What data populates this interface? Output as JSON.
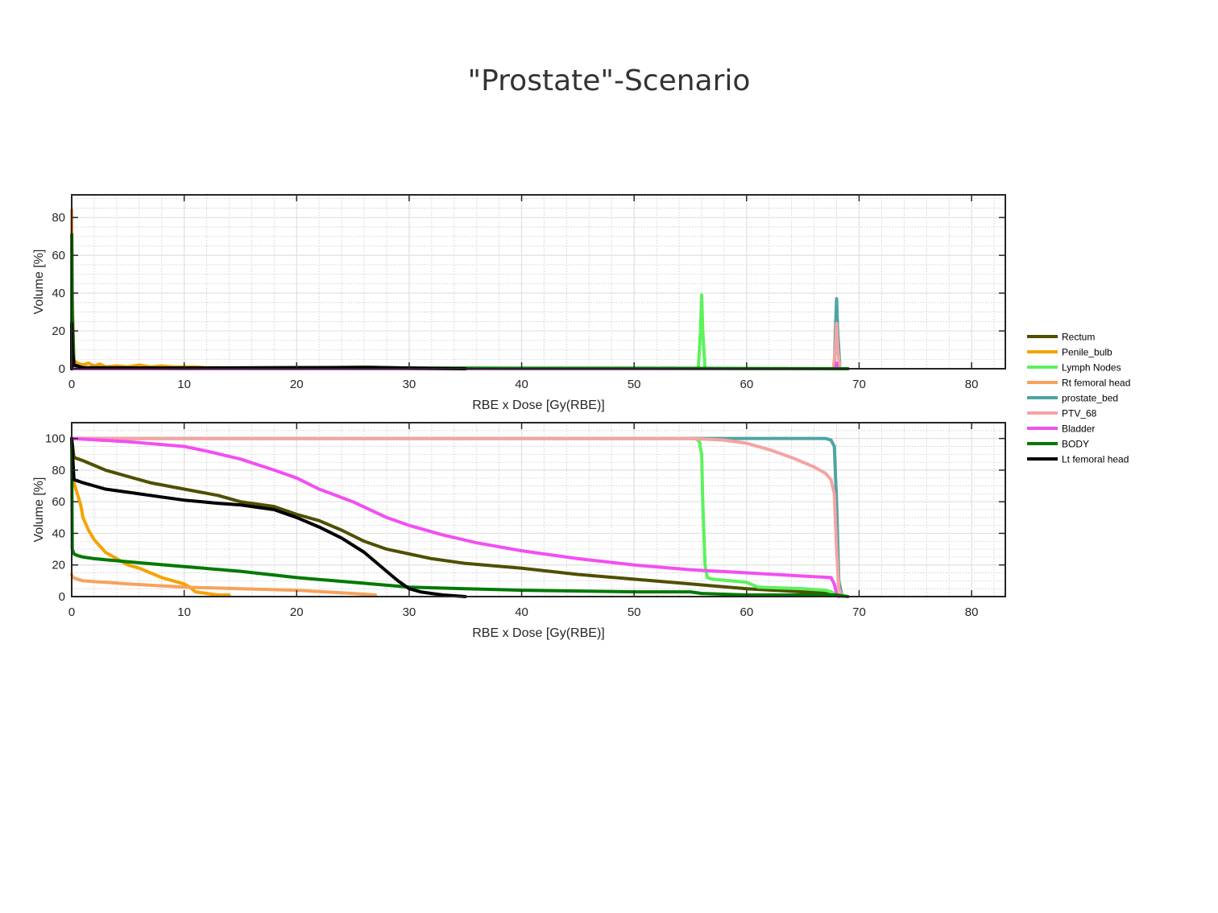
{
  "slide": {
    "title": "\"Prostate\"-Scenario"
  },
  "legend": {
    "entries": [
      {
        "name": "Rectum",
        "color": "#4f4f00"
      },
      {
        "name": "Penile_bulb",
        "color": "#f5a300"
      },
      {
        "name": "Lymph Nodes",
        "color": "#5cf25c"
      },
      {
        "name": "Rt femoral head",
        "color": "#f5a35c"
      },
      {
        "name": "prostate_bed",
        "color": "#4fa3a3"
      },
      {
        "name": "PTV_68",
        "color": "#f5a3a3"
      },
      {
        "name": "Bladder",
        "color": "#f24ff2"
      },
      {
        "name": "BODY",
        "color": "#007a00"
      },
      {
        "name": "Lt femoral head",
        "color": "#000000"
      }
    ]
  },
  "chart_data": [
    {
      "type": "line",
      "panel": "dose-volume-histogram-differential",
      "xlabel": "RBE x Dose [Gy(RBE)]",
      "ylabel": "Volume [%]",
      "xlim": [
        0,
        83
      ],
      "ylim": [
        0,
        92
      ],
      "xticks": [
        0,
        10,
        20,
        30,
        40,
        50,
        60,
        70,
        80
      ],
      "yticks": [
        0,
        20,
        40,
        60,
        80
      ],
      "grid": "on (major and minor)",
      "series": [
        {
          "name": "Rectum",
          "color": "#4f4f00",
          "x": [
            0,
            0.1,
            0.3,
            1,
            5,
            10,
            20,
            26,
            30,
            35
          ],
          "y": [
            6,
            2,
            0.8,
            0.4,
            0.3,
            0.3,
            0.5,
            0.8,
            0.3,
            0
          ]
        },
        {
          "name": "Penile_bulb",
          "color": "#f5a300",
          "x": [
            0,
            0.3,
            0.5,
            1,
            1.5,
            2,
            2.5,
            3,
            4,
            5,
            6,
            7,
            8,
            9,
            10,
            11,
            12,
            13,
            14
          ],
          "y": [
            5,
            4,
            3,
            2,
            3,
            1.5,
            2.5,
            1,
            1.5,
            1,
            2,
            1,
            1.5,
            1,
            1,
            1,
            0.5,
            0.5,
            0
          ]
        },
        {
          "name": "Lymph Nodes",
          "color": "#5cf25c",
          "x": [
            0,
            55.7,
            55.9,
            56.0,
            56.1,
            56.3,
            68
          ],
          "y": [
            0,
            0,
            20,
            39,
            20,
            0,
            0
          ]
        },
        {
          "name": "Rt femoral head",
          "color": "#f5a35c",
          "x": [
            0,
            0.01,
            0.05,
            0.2,
            1,
            10,
            27
          ],
          "y": [
            0,
            84,
            40,
            2,
            0.5,
            0.3,
            0
          ]
        },
        {
          "name": "prostate_bed",
          "color": "#4fa3a3",
          "x": [
            0,
            67.8,
            67.9,
            68.0,
            68.1,
            68.3,
            69
          ],
          "y": [
            0,
            0,
            20,
            37,
            20,
            0,
            0
          ]
        },
        {
          "name": "PTV_68",
          "color": "#f5a3a3",
          "x": [
            0,
            67.7,
            67.9,
            68.0,
            68.1,
            68.3,
            69
          ],
          "y": [
            0,
            0,
            10,
            24,
            10,
            0,
            0
          ]
        },
        {
          "name": "Bladder",
          "color": "#f24ff2",
          "x": [
            0,
            67.9,
            68.0,
            68.1,
            69
          ],
          "y": [
            0,
            0,
            3,
            0,
            0
          ]
        },
        {
          "name": "BODY",
          "color": "#007a00",
          "x": [
            0,
            0.01,
            0.05,
            0.2,
            1,
            10,
            35,
            55,
            69
          ],
          "y": [
            0,
            71,
            30,
            2,
            0.6,
            0.4,
            0.3,
            0.2,
            0
          ]
        },
        {
          "name": "Lt femoral head",
          "color": "#000000",
          "x": [
            0,
            0.01,
            0.05,
            0.2,
            1,
            10,
            20,
            27,
            30,
            35
          ],
          "y": [
            0,
            24,
            10,
            2,
            0.5,
            0.4,
            0.6,
            0.7,
            0.4,
            0
          ]
        }
      ]
    },
    {
      "type": "line",
      "panel": "dose-volume-histogram-cumulative",
      "xlabel": "RBE x Dose [Gy(RBE)]",
      "ylabel": "Volume [%]",
      "xlim": [
        0,
        83
      ],
      "ylim": [
        0,
        110
      ],
      "xticks": [
        0,
        10,
        20,
        30,
        40,
        50,
        60,
        70,
        80
      ],
      "yticks": [
        0,
        20,
        40,
        60,
        80,
        100
      ],
      "grid": "on (major and minor)",
      "series": [
        {
          "name": "Rectum",
          "color": "#4f4f00",
          "x": [
            0,
            0.2,
            1,
            2,
            3,
            5,
            7,
            10,
            13,
            15,
            18,
            20,
            22,
            24,
            26,
            28,
            30,
            32,
            35,
            40,
            45,
            50,
            55,
            60,
            65,
            67.5,
            68,
            68.5
          ],
          "y": [
            100,
            88,
            86,
            83,
            80,
            76,
            72,
            68,
            64,
            60,
            57,
            52,
            48,
            42,
            35,
            30,
            27,
            24,
            21,
            18,
            14,
            11,
            8,
            5,
            3,
            2,
            1,
            0
          ]
        },
        {
          "name": "Penile_bulb",
          "color": "#f5a300",
          "x": [
            0,
            0.2,
            0.5,
            0.8,
            1,
            1.5,
            2,
            2.5,
            3,
            4,
            5,
            6,
            7,
            8,
            9,
            10,
            10.5,
            11,
            12,
            13,
            14
          ],
          "y": [
            80,
            72,
            65,
            58,
            50,
            42,
            36,
            32,
            28,
            24,
            20,
            18,
            15,
            12,
            10,
            8,
            6,
            3,
            2,
            1,
            1
          ]
        },
        {
          "name": "Lymph Nodes",
          "color": "#5cf25c",
          "x": [
            0,
            55.5,
            55.8,
            56.0,
            56.1,
            56.3,
            56.5,
            57,
            60,
            61,
            65,
            67,
            67.5,
            68,
            68.5
          ],
          "y": [
            100,
            100,
            98,
            90,
            60,
            20,
            12,
            11,
            9,
            6,
            5,
            4,
            3,
            1,
            0
          ]
        },
        {
          "name": "Rt femoral head",
          "color": "#f5a35c",
          "x": [
            0,
            0.1,
            0.5,
            1,
            3,
            5,
            10,
            15,
            20,
            25,
            27
          ],
          "y": [
            14,
            12,
            11,
            10,
            9,
            8,
            6,
            5,
            4,
            2,
            1
          ]
        },
        {
          "name": "prostate_bed",
          "color": "#4fa3a3",
          "x": [
            0,
            67,
            67.5,
            67.8,
            68.0,
            68.2,
            68.5
          ],
          "y": [
            100,
            100,
            99,
            95,
            60,
            10,
            0
          ]
        },
        {
          "name": "PTV_68",
          "color": "#f5a3a3",
          "x": [
            0,
            55,
            58,
            60,
            62,
            64,
            66,
            67,
            67.5,
            67.8,
            68.0,
            68.2,
            68.5
          ],
          "y": [
            100,
            100,
            99,
            97,
            93,
            88,
            82,
            78,
            74,
            65,
            30,
            5,
            0
          ]
        },
        {
          "name": "Bladder",
          "color": "#f24ff2",
          "x": [
            0,
            5,
            10,
            12,
            15,
            18,
            20,
            22,
            25,
            28,
            30,
            33,
            36,
            40,
            45,
            50,
            55,
            60,
            65,
            67.5,
            67.8,
            68,
            68.2
          ],
          "y": [
            100,
            98,
            95,
            92,
            87,
            80,
            75,
            68,
            60,
            50,
            45,
            39,
            34,
            29,
            24,
            20,
            17,
            15,
            13,
            12,
            8,
            2,
            0
          ]
        },
        {
          "name": "BODY",
          "color": "#007a00",
          "x": [
            0,
            0.05,
            0.2,
            0.5,
            1,
            2,
            5,
            10,
            15,
            20,
            25,
            30,
            35,
            40,
            50,
            55,
            56,
            60,
            65,
            68,
            69
          ],
          "y": [
            100,
            30,
            27,
            26,
            25,
            24,
            22,
            19,
            16,
            12,
            9,
            6,
            5,
            4,
            3,
            3,
            2,
            1,
            1,
            1,
            0
          ]
        },
        {
          "name": "Lt femoral head",
          "color": "#000000",
          "x": [
            0,
            0.2,
            1,
            2,
            3,
            5,
            8,
            10,
            13,
            15,
            18,
            20,
            22,
            24,
            26,
            28,
            29,
            30,
            31,
            32,
            33,
            35
          ],
          "y": [
            100,
            74,
            72,
            70,
            68,
            66,
            63,
            61,
            59,
            58,
            55,
            50,
            44,
            37,
            28,
            16,
            10,
            5,
            3,
            2,
            1,
            0
          ]
        }
      ]
    }
  ]
}
